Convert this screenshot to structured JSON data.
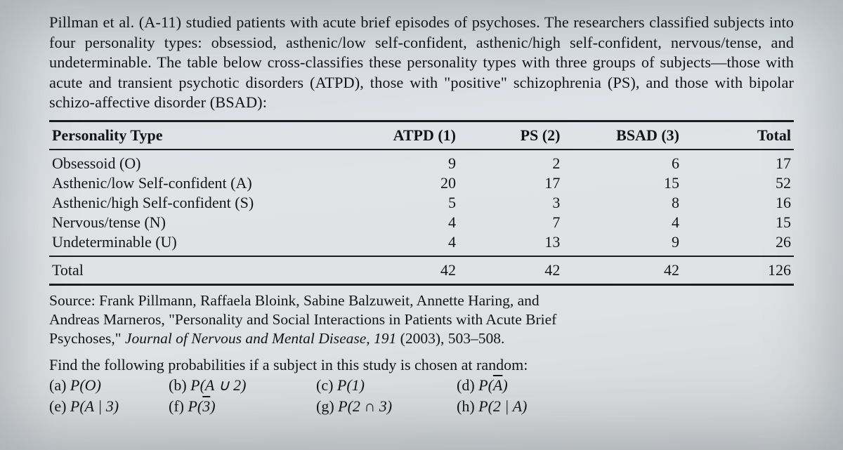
{
  "paragraph": "Pillman et al. (A-11) studied patients with acute brief episodes of psychoses. The researchers classified subjects into four personality types: obsessiod, asthenic/low self-confident, asthenic/high self-confident, nervous/tense, and undeterminable. The table below cross-classifies these personality types with three groups of subjects—those with acute and transient psychotic disorders (ATPD), those with \"positive\" schizophrenia (PS), and those with bipolar schizo-affective disorder (BSAD):",
  "table": {
    "headers": {
      "type": "Personality Type",
      "col1": "ATPD (1)",
      "col2": "PS (2)",
      "col3": "BSAD (3)",
      "total": "Total"
    },
    "rows": [
      {
        "label": "Obsessoid (O)",
        "c1": "9",
        "c2": "2",
        "c3": "6",
        "t": "17"
      },
      {
        "label": "Asthenic/low Self-confident (A)",
        "c1": "20",
        "c2": "17",
        "c3": "15",
        "t": "52"
      },
      {
        "label": "Asthenic/high Self-confident (S)",
        "c1": "5",
        "c2": "3",
        "c3": "8",
        "t": "16"
      },
      {
        "label": "Nervous/tense (N)",
        "c1": "4",
        "c2": "7",
        "c3": "4",
        "t": "15"
      },
      {
        "label": "Undeterminable (U)",
        "c1": "4",
        "c2": "13",
        "c3": "9",
        "t": "26"
      }
    ],
    "footer": {
      "label": "Total",
      "c1": "42",
      "c2": "42",
      "c3": "42",
      "t": "126"
    }
  },
  "source": {
    "line1": "Source: Frank Pillmann, Raffaela Bloink, Sabine Balzuweit, Annette Haring, and",
    "line2": "Andreas Marneros, \"Personality and Social Interactions in Patients with Acute Brief",
    "line3_a": "Psychoses,\" ",
    "line3_ital": "Journal of Nervous and Mental Disease, 191",
    "line3_b": " (2003), 503–508."
  },
  "prompt": "Find the following probabilities if a subject in this study is chosen at random:",
  "answers": {
    "a": {
      "tag": "(a)",
      "expr_pre": "P(O)"
    },
    "b": {
      "tag": "(b)",
      "expr_pre": "P(A ∪ 2)"
    },
    "c": {
      "tag": "(c)",
      "expr_pre": "P(1)"
    },
    "d": {
      "tag": "(d)",
      "bar_var": "A"
    },
    "e": {
      "tag": "(e)",
      "expr_pre": "P(A | 3)"
    },
    "f": {
      "tag": "(f)",
      "bar_var": "3"
    },
    "g": {
      "tag": "(g)",
      "expr_pre": "P(2 ∩ 3)"
    },
    "h": {
      "tag": "(h)",
      "expr_pre": "P(2 | A)"
    }
  },
  "style": {
    "text_color": "#121418",
    "rule_color": "#1a1c20",
    "page_bg_start": "#d5dadf",
    "page_bg_end": "#d2d5d7",
    "body_font_size_pt": 17,
    "line_height": 1.28
  }
}
